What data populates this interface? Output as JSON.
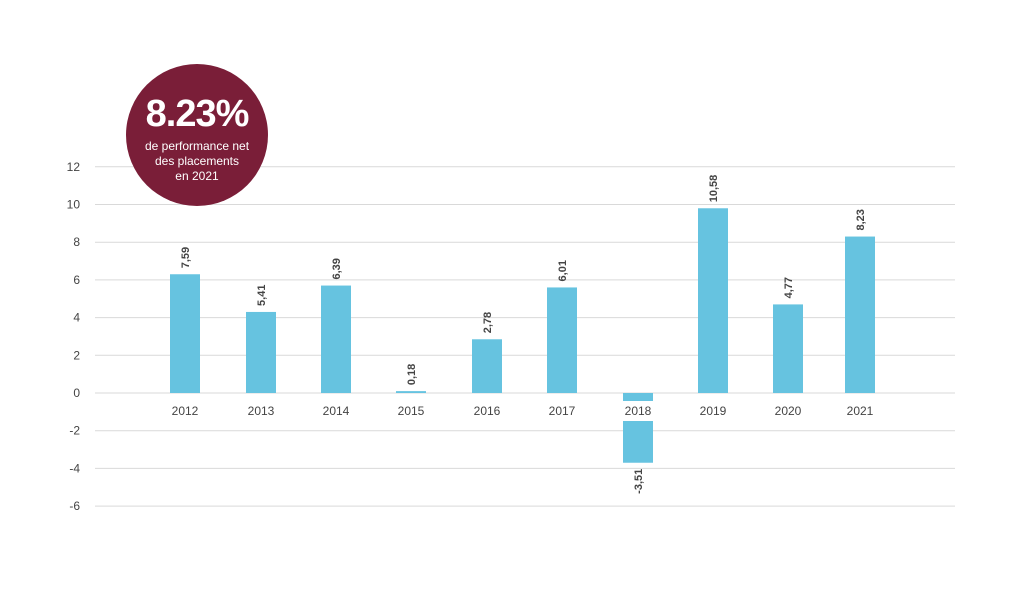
{
  "badge": {
    "value": "8.23%",
    "lines": [
      "de performance net",
      "des placements",
      "en 2021"
    ]
  },
  "colors": {
    "bar": "#66c3e0",
    "badge": "#7a1e38",
    "grid": "#d9d9d9",
    "text": "#444444"
  },
  "chart_data": {
    "type": "bar",
    "categories": [
      "2012",
      "2013",
      "2014",
      "2015",
      "2016",
      "2017",
      "2018",
      "2019",
      "2020",
      "2021"
    ],
    "values": [
      7.59,
      5.41,
      6.39,
      0.18,
      2.78,
      6.01,
      -3.51,
      10.58,
      4.77,
      8.23
    ],
    "drawn_values": [
      6.3,
      4.3,
      5.7,
      0.1,
      2.85,
      5.6,
      -3.7,
      9.8,
      4.7,
      8.3
    ],
    "data_labels": [
      "7,59",
      "5,41",
      "6,39",
      "0,18",
      "2,78",
      "6,01",
      "-3,51",
      "10,58",
      "4,77",
      "8,23"
    ],
    "y_ticks": [
      12,
      10,
      8,
      6,
      4,
      2,
      0,
      -2,
      -4,
      -6
    ],
    "ylim": [
      -6,
      12
    ],
    "grid": true,
    "legend": "none"
  }
}
